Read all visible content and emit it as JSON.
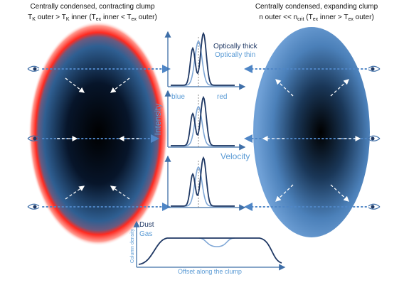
{
  "left_clump": {
    "title": "Centrally condensed, contracting clump",
    "condition": [
      "T",
      "K",
      " outer > T",
      "K",
      " inner (T",
      "ex",
      " inner < T",
      "ex",
      " outer)"
    ]
  },
  "right_clump": {
    "title": "Centrally condensed, expanding clump",
    "condition": [
      "n outer << n",
      "crit",
      " (T",
      "ex",
      " inner > T",
      "ex",
      " outer)"
    ]
  },
  "spectra": {
    "legend_thick": "Optically thick",
    "legend_thin": "Optically thin",
    "blue": "blue",
    "red": "red",
    "y_label": "Intensity",
    "x_label": "Velocity"
  },
  "column_plot": {
    "dust": "Dust",
    "gas": "Gas",
    "y_label": "Column density",
    "x_label": "Offset along the clump"
  }
}
